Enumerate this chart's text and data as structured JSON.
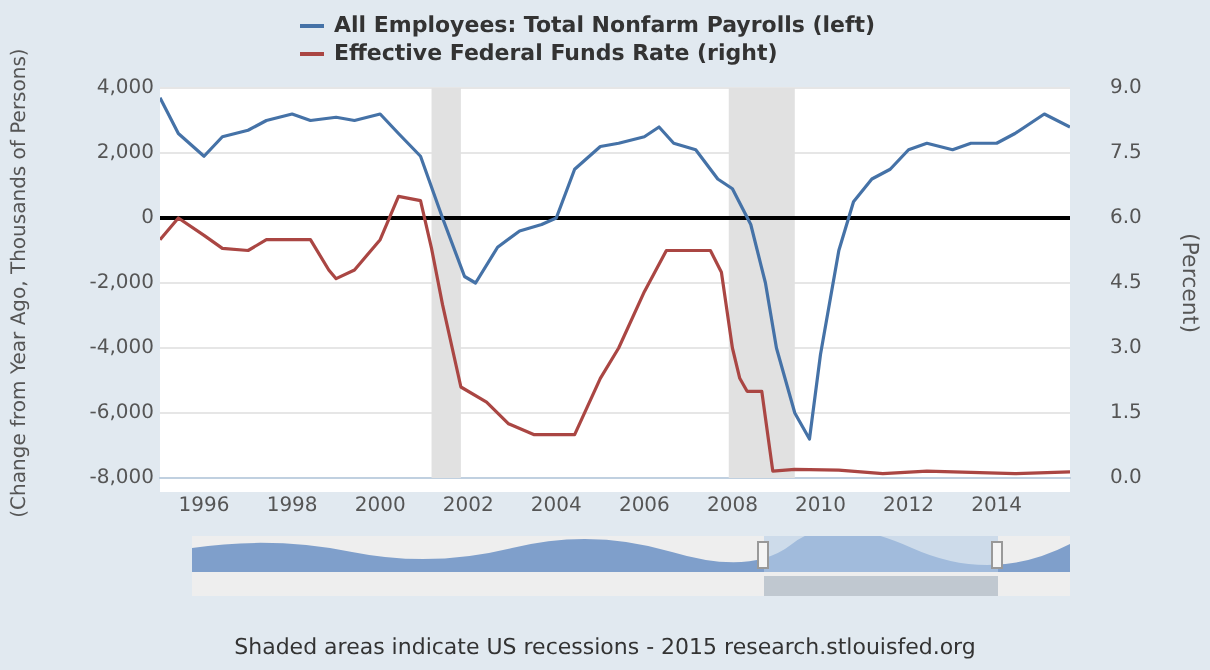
{
  "chart_data": {
    "type": "line",
    "ylabel": "(Change from Year Ago, Thousands of Persons)",
    "y2label": "(Percent)",
    "annotations": [
      "Shaded areas indicate US recessions - 2015 research.stlouisfed.org"
    ],
    "xlim": [
      "1995-01",
      "2015-09"
    ],
    "xticks": [
      "1996",
      "1998",
      "2000",
      "2002",
      "2004",
      "2006",
      "2008",
      "2010",
      "2012",
      "2014"
    ],
    "ylim": [
      -8000,
      4000
    ],
    "yticks": [
      {
        "value": -8000,
        "label": "-8,000"
      },
      {
        "value": -6000,
        "label": "-6,000"
      },
      {
        "value": -4000,
        "label": "-4,000"
      },
      {
        "value": -2000,
        "label": "-2,000"
      },
      0,
      {
        "value": 2000,
        "label": "2,000"
      },
      {
        "value": 4000,
        "label": "4,000"
      }
    ],
    "y2lim": [
      0,
      9
    ],
    "y2ticks": [
      {
        "value": 0,
        "label": "0.0"
      },
      {
        "value": 1.5,
        "label": "1.5"
      },
      {
        "value": 3,
        "label": "3.0"
      },
      {
        "value": 4.5,
        "label": "4.5"
      },
      {
        "value": 6,
        "label": "6.0"
      },
      {
        "value": 7.5,
        "label": "7.5"
      },
      {
        "value": 9,
        "label": "9.0"
      }
    ],
    "grid": "y",
    "legend": "top left",
    "marker": "none",
    "line_style": "solid",
    "ref_lines": [
      {
        "axis": "y",
        "value": 0,
        "label": null,
        "color": "#000000"
      }
    ],
    "bands": [
      {
        "axis": "x",
        "from": "2001-03",
        "to": "2001-11",
        "label": null,
        "color": "#e1e1e1"
      },
      {
        "axis": "x",
        "from": "2007-12",
        "to": "2009-06",
        "label": null,
        "color": "#e1e1e1"
      }
    ],
    "series": [
      {
        "name": "All Employees: Total Nonfarm Payrolls (left)",
        "color": "#4572a7",
        "axis": "y",
        "x": [
          "1995-01",
          "1995-06",
          "1996-01",
          "1996-06",
          "1997-01",
          "1997-06",
          "1998-01",
          "1998-06",
          "1999-01",
          "1999-06",
          "2000-01",
          "2000-06",
          "2000-12",
          "2001-06",
          "2001-12",
          "2002-03",
          "2002-09",
          "2003-03",
          "2003-09",
          "2004-01",
          "2004-06",
          "2005-01",
          "2005-06",
          "2006-01",
          "2006-05",
          "2006-09",
          "2007-03",
          "2007-09",
          "2008-01",
          "2008-06",
          "2008-10",
          "2009-01",
          "2009-06",
          "2009-10",
          "2010-01",
          "2010-06",
          "2010-10",
          "2011-03",
          "2011-08",
          "2012-01",
          "2012-06",
          "2013-01",
          "2013-06",
          "2014-01",
          "2014-06",
          "2015-02",
          "2015-09"
        ],
        "values": [
          3700,
          2600,
          1900,
          2500,
          2700,
          3000,
          3200,
          3000,
          3100,
          3000,
          3200,
          2600,
          1900,
          0,
          -1800,
          -2000,
          -900,
          -400,
          -200,
          0,
          1500,
          2200,
          2300,
          2500,
          2800,
          2300,
          2100,
          1200,
          900,
          -200,
          -2000,
          -4000,
          -6000,
          -6800,
          -4200,
          -1000,
          500,
          1200,
          1500,
          2100,
          2300,
          2100,
          2300,
          2300,
          2600,
          3200,
          2800
        ]
      },
      {
        "name": "Effective Federal Funds Rate (right)",
        "color": "#aa4643",
        "axis": "y2",
        "x": [
          "1995-01",
          "1995-06",
          "1996-01",
          "1996-06",
          "1997-01",
          "1997-06",
          "1998-06",
          "1998-11",
          "1999-01",
          "1999-06",
          "2000-01",
          "2000-06",
          "2000-12",
          "2001-03",
          "2001-06",
          "2001-11",
          "2002-06",
          "2002-12",
          "2003-07",
          "2004-06",
          "2005-01",
          "2005-06",
          "2006-01",
          "2006-07",
          "2007-07",
          "2007-10",
          "2008-01",
          "2008-03",
          "2008-05",
          "2008-09",
          "2008-12",
          "2009-06",
          "2010-06",
          "2011-06",
          "2012-06",
          "2014-06",
          "2015-09"
        ],
        "values": [
          5.5,
          6.0,
          5.6,
          5.3,
          5.25,
          5.5,
          5.5,
          4.8,
          4.6,
          4.8,
          5.5,
          6.5,
          6.4,
          5.3,
          4.0,
          2.1,
          1.75,
          1.25,
          1.0,
          1.0,
          2.3,
          3.0,
          4.3,
          5.25,
          5.25,
          4.75,
          3.0,
          2.3,
          2.0,
          2.0,
          0.16,
          0.2,
          0.18,
          0.1,
          0.16,
          0.1,
          0.14
        ]
      }
    ]
  }
}
